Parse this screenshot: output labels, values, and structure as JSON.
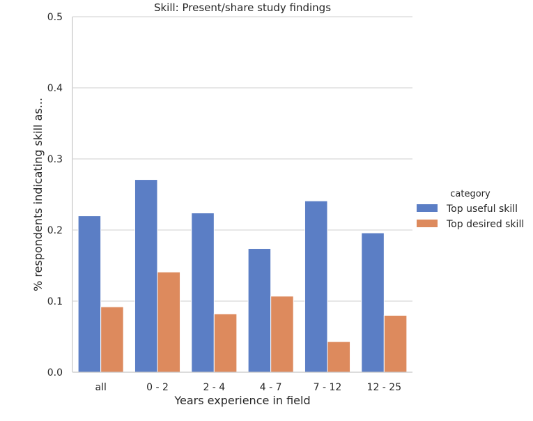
{
  "chart_data": {
    "type": "bar",
    "title": "Skill: Present/share study findings",
    "xlabel": "Years experience in field",
    "ylabel": "% respondents indicating skill as...",
    "categories": [
      "all",
      "0 - 2",
      "2 - 4",
      "4 - 7",
      "7 - 12",
      "12 - 25"
    ],
    "series": [
      {
        "name": "Top useful skill",
        "color": "#5b7ec5",
        "values": [
          0.22,
          0.271,
          0.224,
          0.174,
          0.241,
          0.196
        ]
      },
      {
        "name": "Top desired skill",
        "color": "#dd8a5d",
        "values": [
          0.092,
          0.141,
          0.082,
          0.107,
          0.043,
          0.08
        ]
      }
    ],
    "ylim": [
      0,
      0.5
    ],
    "yticks": [
      "0.0",
      "0.1",
      "0.2",
      "0.3",
      "0.4",
      "0.5"
    ],
    "grid": "horizontal",
    "legend": {
      "title": "category",
      "position": "right"
    }
  }
}
